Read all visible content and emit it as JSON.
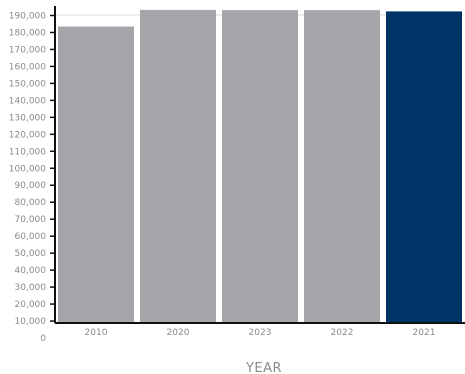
{
  "chart_data": {
    "type": "bar",
    "categories": [
      "2010",
      "2020",
      "2023",
      "2022",
      "2021"
    ],
    "values": [
      183500,
      193300,
      193200,
      193200,
      192400
    ],
    "ylim": [
      0,
      190000
    ],
    "y_ticks": [
      "0",
      "10,000",
      "20,000",
      "30,000",
      "40,000",
      "50,000",
      "60,000",
      "70,000",
      "80,000",
      "90,000",
      "100,000",
      "110,000",
      "120,000",
      "130,000",
      "140,000",
      "150,000",
      "160,000",
      "170,000",
      "180,000",
      "190,000"
    ],
    "xlabel": "YEAR",
    "ylabel": "",
    "title": "",
    "grid": false,
    "legend": "none",
    "colors": {
      "bar_default": "#a6a6aa",
      "bar_highlight": "#003466",
      "highlight_category": "2021",
      "axis": "#111111",
      "text": "#8a8a8a",
      "gridline": "#dddddd"
    }
  }
}
